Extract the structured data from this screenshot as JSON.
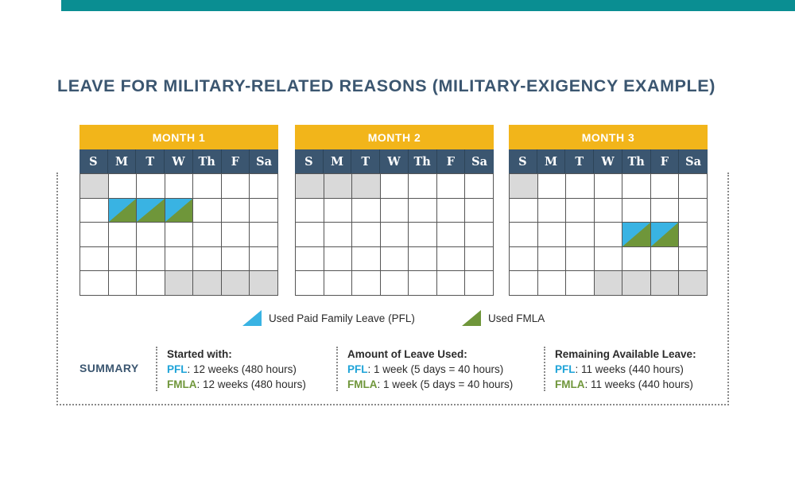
{
  "title": "LEAVE FOR MILITARY-RELATED REASONS (MILITARY-EXIGENCY EXAMPLE)",
  "colors": {
    "teal_bar": "#0a8e92",
    "navy": "#3b5670",
    "gold": "#f2b51a",
    "pfl_blue": "#39b3e3",
    "fmla_green": "#6f963a",
    "gray_cell": "#d9d9d9"
  },
  "days_of_week": [
    "S",
    "M",
    "T",
    "W",
    "Th",
    "F",
    "Sa"
  ],
  "months": [
    {
      "label": "MONTH 1",
      "rows": [
        [
          "gray",
          "",
          "",
          "",
          "",
          "",
          ""
        ],
        [
          "",
          "used",
          "used",
          "used",
          "",
          "",
          ""
        ],
        [
          "",
          "",
          "",
          "",
          "",
          "",
          ""
        ],
        [
          "",
          "",
          "",
          "",
          "",
          "",
          ""
        ],
        [
          "",
          "",
          "",
          "gray",
          "gray",
          "gray",
          "gray"
        ]
      ]
    },
    {
      "label": "MONTH 2",
      "rows": [
        [
          "gray",
          "gray",
          "gray",
          "",
          "",
          "",
          ""
        ],
        [
          "",
          "",
          "",
          "",
          "",
          "",
          ""
        ],
        [
          "",
          "",
          "",
          "",
          "",
          "",
          ""
        ],
        [
          "",
          "",
          "",
          "",
          "",
          "",
          ""
        ],
        [
          "",
          "",
          "",
          "",
          "",
          "",
          ""
        ]
      ]
    },
    {
      "label": "MONTH 3",
      "rows": [
        [
          "gray",
          "",
          "",
          "",
          "",
          "",
          ""
        ],
        [
          "",
          "",
          "",
          "",
          "",
          "",
          ""
        ],
        [
          "",
          "",
          "",
          "",
          "used",
          "used",
          ""
        ],
        [
          "",
          "",
          "",
          "",
          "",
          "",
          ""
        ],
        [
          "",
          "",
          "",
          "gray",
          "gray",
          "gray",
          "gray"
        ]
      ]
    }
  ],
  "legend": {
    "pfl": "Used Paid Family Leave (PFL)",
    "fmla": "Used FMLA"
  },
  "summary": {
    "label": "SUMMARY",
    "columns": [
      {
        "heading": "Started with:",
        "pfl_key": "PFL",
        "pfl_value": ": 12 weeks (480 hours)",
        "fmla_key": "FMLA",
        "fmla_value": ": 12 weeks (480 hours)"
      },
      {
        "heading": "Amount of Leave Used:",
        "pfl_key": "PFL",
        "pfl_value": ": 1 week (5 days = 40 hours)",
        "fmla_key": "FMLA",
        "fmla_value": ": 1 week (5 days = 40 hours)"
      },
      {
        "heading": "Remaining Available Leave:",
        "pfl_key": "PFL",
        "pfl_value": ": 11 weeks (440 hours)",
        "fmla_key": "FMLA",
        "fmla_value": ": 11 weeks (440 hours)"
      }
    ]
  }
}
